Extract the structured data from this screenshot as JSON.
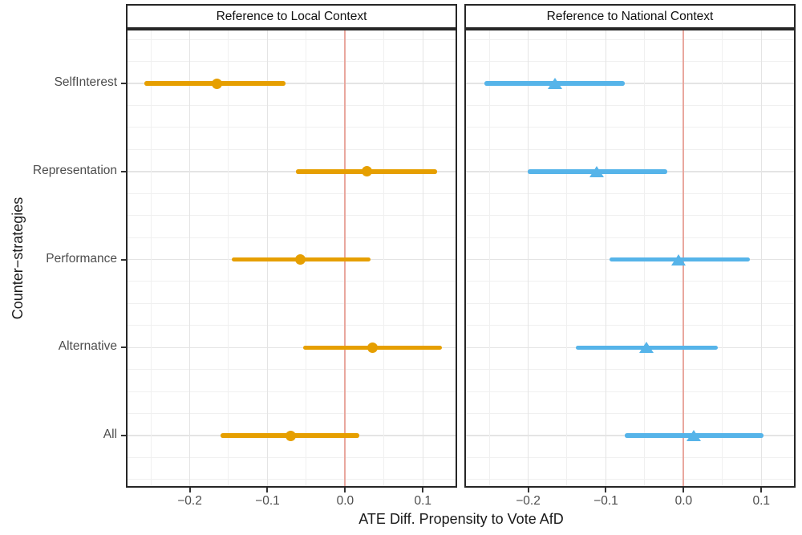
{
  "chart_data": {
    "type": "scatter",
    "variant": "faceted dot-whisker coefficient plot with horizontal confidence intervals",
    "xlabel": "ATE Diff. Propensity to Vote AfD",
    "ylabel": "Counter−strategies",
    "categories": [
      "SelfInterest",
      "Representation",
      "Performance",
      "Alternative",
      "All"
    ],
    "xlim": [
      -0.28,
      0.142
    ],
    "x_ticks": [
      -0.2,
      -0.1,
      0.0,
      0.1
    ],
    "x_tick_labels": [
      "−0.2",
      "−0.1",
      "0.0",
      "0.1"
    ],
    "x_minor_ticks": [
      -0.25,
      -0.15,
      -0.05,
      0.05
    ],
    "grid": "major and minor gridlines on, white panel background, black panel border",
    "legend": "none",
    "zero_line": {
      "x": 0,
      "color": "#E9A79E"
    },
    "facets": [
      {
        "title": "Reference to Local Context",
        "marker": "circle",
        "color": "#E69F00",
        "series": [
          {
            "category": "SelfInterest",
            "estimate": -0.165,
            "ci_low": -0.258,
            "ci_high": -0.077
          },
          {
            "category": "Representation",
            "estimate": 0.028,
            "ci_low": -0.063,
            "ci_high": 0.118
          },
          {
            "category": "Performance",
            "estimate": -0.058,
            "ci_low": -0.146,
            "ci_high": 0.033
          },
          {
            "category": "Alternative",
            "estimate": 0.035,
            "ci_low": -0.054,
            "ci_high": 0.124
          },
          {
            "category": "All",
            "estimate": -0.07,
            "ci_low": -0.16,
            "ci_high": 0.018
          }
        ]
      },
      {
        "title": "Reference to National Context",
        "marker": "triangle",
        "color": "#56B4E9",
        "series": [
          {
            "category": "SelfInterest",
            "estimate": -0.165,
            "ci_low": -0.256,
            "ci_high": -0.076
          },
          {
            "category": "Representation",
            "estimate": -0.112,
            "ci_low": -0.201,
            "ci_high": -0.021
          },
          {
            "category": "Performance",
            "estimate": -0.007,
            "ci_low": -0.095,
            "ci_high": 0.085
          },
          {
            "category": "Alternative",
            "estimate": -0.048,
            "ci_low": -0.139,
            "ci_high": 0.044
          },
          {
            "category": "All",
            "estimate": 0.013,
            "ci_low": -0.076,
            "ci_high": 0.103
          }
        ]
      }
    ]
  }
}
